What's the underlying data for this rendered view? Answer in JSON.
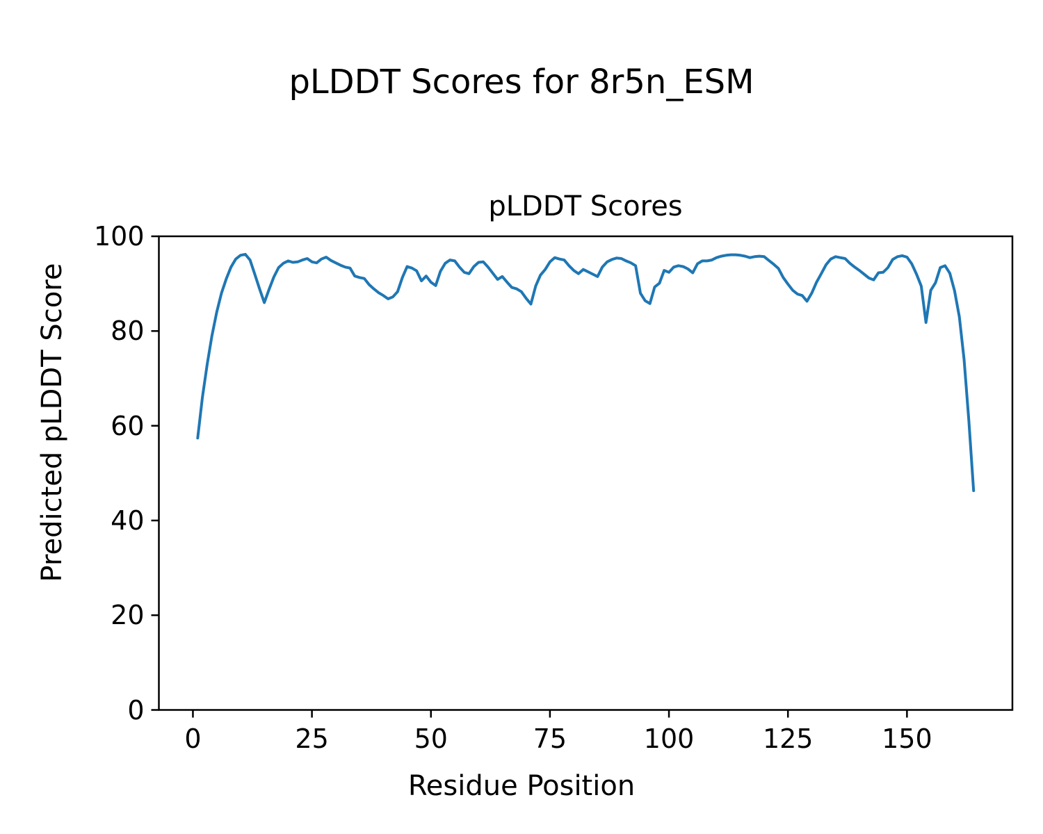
{
  "chart_data": {
    "type": "line",
    "suptitle": "pLDDT Scores for 8r5n_ESM",
    "title": "pLDDT Scores",
    "xlabel": "Residue Position",
    "ylabel": "Predicted pLDDT Score",
    "grid": false,
    "legend": null,
    "line_color": "#1f77b4",
    "line_width": 4,
    "text_color": "#000000",
    "background_color": "#ffffff",
    "xlim": [
      -7.15,
      172.15
    ],
    "ylim": [
      0,
      100
    ],
    "x_ticks": [
      0,
      25,
      50,
      75,
      100,
      125,
      150
    ],
    "y_ticks": [
      0,
      20,
      40,
      60,
      80,
      100
    ],
    "series": [
      {
        "name": "pLDDT",
        "x": [
          1,
          2,
          3,
          4,
          5,
          6,
          7,
          8,
          9,
          10,
          11,
          12,
          13,
          14,
          15,
          16,
          17,
          18,
          19,
          20,
          21,
          22,
          23,
          24,
          25,
          26,
          27,
          28,
          29,
          30,
          31,
          32,
          33,
          34,
          35,
          36,
          37,
          38,
          39,
          40,
          41,
          42,
          43,
          44,
          45,
          46,
          47,
          48,
          49,
          50,
          51,
          52,
          53,
          54,
          55,
          56,
          57,
          58,
          59,
          60,
          61,
          62,
          63,
          64,
          65,
          66,
          67,
          68,
          69,
          70,
          71,
          72,
          73,
          74,
          75,
          76,
          77,
          78,
          79,
          80,
          81,
          82,
          83,
          84,
          85,
          86,
          87,
          88,
          89,
          90,
          91,
          92,
          93,
          94,
          95,
          96,
          97,
          98,
          99,
          100,
          101,
          102,
          103,
          104,
          105,
          106,
          107,
          108,
          109,
          110,
          111,
          112,
          113,
          114,
          115,
          116,
          117,
          118,
          119,
          120,
          121,
          122,
          123,
          124,
          125,
          126,
          127,
          128,
          129,
          130,
          131,
          132,
          133,
          134,
          135,
          136,
          137,
          138,
          139,
          140,
          141,
          142,
          143,
          144,
          145,
          146,
          147,
          148,
          149,
          150,
          151,
          152,
          153,
          154,
          155,
          156,
          157,
          158,
          159,
          160,
          161,
          162,
          163,
          164
        ],
        "values": [
          57.4,
          66.0,
          73.0,
          79.0,
          84.0,
          88.0,
          91.0,
          93.5,
          95.2,
          96.0,
          96.2,
          95.0,
          92.0,
          88.9,
          86.0,
          88.8,
          91.4,
          93.4,
          94.3,
          94.8,
          94.5,
          94.6,
          95.0,
          95.3,
          94.6,
          94.4,
          95.2,
          95.6,
          94.9,
          94.4,
          93.9,
          93.5,
          93.3,
          91.6,
          91.3,
          91.1,
          89.8,
          88.9,
          88.1,
          87.5,
          86.8,
          87.2,
          88.3,
          91.3,
          93.6,
          93.3,
          92.7,
          90.6,
          91.6,
          90.3,
          89.6,
          92.6,
          94.3,
          95.0,
          94.8,
          93.5,
          92.4,
          92.1,
          93.6,
          94.5,
          94.6,
          93.5,
          92.2,
          90.9,
          91.5,
          90.3,
          89.2,
          88.9,
          88.3,
          86.9,
          85.7,
          89.5,
          91.8,
          93.0,
          94.6,
          95.5,
          95.2,
          95.0,
          93.8,
          92.8,
          92.1,
          93.0,
          92.5,
          92.0,
          91.5,
          93.5,
          94.6,
          95.1,
          95.4,
          95.3,
          94.8,
          94.4,
          93.8,
          88.0,
          86.4,
          85.8,
          89.3,
          90.1,
          92.8,
          92.4,
          93.5,
          93.8,
          93.6,
          93.1,
          92.3,
          94.2,
          94.8,
          94.8,
          95.0,
          95.5,
          95.8,
          96.0,
          96.1,
          96.1,
          96.0,
          95.8,
          95.5,
          95.7,
          95.8,
          95.7,
          94.9,
          94.1,
          93.2,
          91.3,
          89.9,
          88.6,
          87.8,
          87.5,
          86.3,
          88.0,
          90.3,
          92.1,
          94.0,
          95.2,
          95.7,
          95.5,
          95.3,
          94.3,
          93.5,
          92.8,
          92.0,
          91.2,
          90.8,
          92.3,
          92.4,
          93.4,
          95.1,
          95.7,
          95.9,
          95.6,
          94.2,
          92.0,
          89.5,
          81.8,
          88.6,
          90.2,
          93.4,
          93.8,
          92.2,
          88.5,
          83.0,
          74.0,
          61.0,
          46.3
        ]
      }
    ]
  }
}
